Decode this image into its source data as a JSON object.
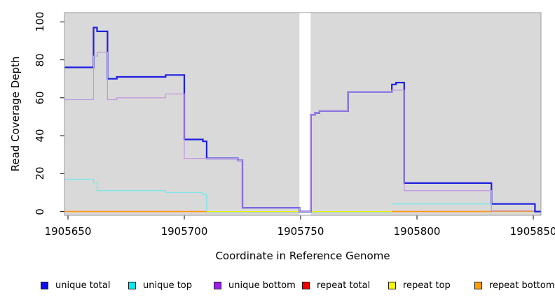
{
  "chart_data": {
    "type": "line",
    "step": true,
    "title": "",
    "xlabel": "Coordinate in Reference Genome",
    "ylabel": "Read Coverage Depth",
    "xlim": [
      1905648.5,
      1905853.3
    ],
    "ylim": [
      -2,
      104.9
    ],
    "x_ticks": [
      1905650,
      1905700,
      1905750,
      1905800,
      1905850
    ],
    "y_ticks": [
      0,
      20,
      40,
      60,
      80,
      100
    ],
    "plot_bg": "#d9d9d9",
    "border_color": "#9b9b9b",
    "tick_color": "#2b2b2b",
    "grid": false,
    "legend_position": "bottom",
    "gap_region": {
      "x_start": 1905749.5,
      "x_end": 1905754.3,
      "color": "#ffffff"
    },
    "series": [
      {
        "name": "unique total",
        "color": "#0d0df0",
        "points": [
          [
            1905648.5,
            76
          ],
          [
            1905661,
            97
          ],
          [
            1905662.5,
            95
          ],
          [
            1905667,
            70
          ],
          [
            1905671,
            71
          ],
          [
            1905692,
            72
          ],
          [
            1905700,
            38
          ],
          [
            1905708,
            37
          ],
          [
            1905709.6,
            28
          ],
          [
            1905723,
            27
          ],
          [
            1905725,
            2
          ],
          [
            1905749.5,
            0
          ],
          [
            1905754.4,
            51
          ],
          [
            1905756.2,
            52
          ],
          [
            1905758.1,
            53
          ],
          [
            1905770.4,
            63
          ],
          [
            1905789.2,
            67
          ],
          [
            1905791,
            68
          ],
          [
            1905794.5,
            15
          ],
          [
            1905832,
            4
          ],
          [
            1905850.7,
            0
          ]
        ],
        "end": 1905853.3
      },
      {
        "name": "unique top",
        "color": "#00e8f0",
        "points": [
          [
            1905648.5,
            17
          ],
          [
            1905661,
            15
          ],
          [
            1905662.5,
            11
          ],
          [
            1905692,
            10
          ],
          [
            1905708,
            9
          ],
          [
            1905709.6,
            0
          ],
          [
            1905789.2,
            4
          ],
          [
            1905832,
            0
          ]
        ],
        "end": 1905853.3
      },
      {
        "name": "unique bottom",
        "color": "#9a20e8",
        "points": [
          [
            1905648.5,
            59
          ],
          [
            1905661,
            82
          ],
          [
            1905662.7,
            84
          ],
          [
            1905667,
            59
          ],
          [
            1905671,
            60
          ],
          [
            1905692,
            62
          ],
          [
            1905700,
            28
          ],
          [
            1905723,
            27
          ],
          [
            1905725,
            2
          ],
          [
            1905749.5,
            0
          ],
          [
            1905754.4,
            51
          ],
          [
            1905756.2,
            52
          ],
          [
            1905758.1,
            53
          ],
          [
            1905770.4,
            63
          ],
          [
            1905789.2,
            64
          ],
          [
            1905794.5,
            11
          ],
          [
            1905832,
            0
          ]
        ],
        "end": 1905853.3
      },
      {
        "name": "repeat total",
        "color": "#f00000",
        "points": [
          [
            1905648.5,
            0
          ]
        ],
        "end": 1905853.3
      },
      {
        "name": "repeat top",
        "color": "#f5f500",
        "points": [
          [
            1905648.5,
            0
          ]
        ],
        "end": 1905853.3
      },
      {
        "name": "repeat bottom",
        "color": "#ffa000",
        "points": [
          [
            1905648.5,
            0
          ]
        ],
        "end": 1905853.3
      }
    ],
    "render_layers": [
      {
        "name": "repeat-top-line",
        "color": "#f2f200",
        "w": 1.2,
        "points": [
          [
            1905648.5,
            0
          ]
        ],
        "end": 1905853.3
      },
      {
        "name": "repeat-total-line",
        "color": "#e0607d",
        "w": 1.3,
        "points": [
          [
            1905832,
            0.2
          ]
        ],
        "end": 1905850.7
      },
      {
        "name": "overlap-green-line",
        "color": "#a5daa5",
        "w": 1.2,
        "points": [
          [
            1905709.6,
            -0.4
          ]
        ],
        "end": 1905789.2
      },
      {
        "name": "unique-total-line",
        "color": "#1f1fe0",
        "w": 2.2,
        "points": [
          [
            1905648.5,
            76
          ],
          [
            1905661,
            97
          ],
          [
            1905662.5,
            95
          ],
          [
            1905667,
            70
          ],
          [
            1905671,
            71
          ],
          [
            1905692,
            72
          ],
          [
            1905700,
            38
          ],
          [
            1905708,
            37
          ],
          [
            1905709.6,
            28
          ],
          [
            1905723,
            27
          ],
          [
            1905725,
            2
          ],
          [
            1905749.5,
            0
          ],
          [
            1905754.4,
            51
          ],
          [
            1905756.2,
            52
          ],
          [
            1905758.1,
            53
          ],
          [
            1905770.4,
            63
          ],
          [
            1905789.2,
            67
          ],
          [
            1905791,
            68
          ],
          [
            1905794.5,
            15
          ],
          [
            1905832,
            4
          ],
          [
            1905850.7,
            0
          ]
        ],
        "end": 1905853.3
      },
      {
        "name": "unique-top-line",
        "color": "#7ce6e8",
        "w": 1.3,
        "points": [
          [
            1905648.5,
            17
          ],
          [
            1905661,
            15
          ],
          [
            1905662.5,
            11
          ],
          [
            1905692,
            10
          ],
          [
            1905708,
            9
          ],
          [
            1905709.6,
            0
          ]
        ],
        "end": 1905710.2
      },
      {
        "name": "unique-top-line-2",
        "color": "#7ce6e8",
        "w": 1.3,
        "points": [
          [
            1905789.2,
            4
          ],
          [
            1905832,
            0
          ]
        ],
        "end": 1905832.6
      },
      {
        "name": "unique-bottom-line",
        "color": "#c49ae2",
        "w": 1.3,
        "points": [
          [
            1905648.5,
            59
          ],
          [
            1905661,
            82
          ],
          [
            1905662.7,
            84
          ],
          [
            1905667,
            59
          ],
          [
            1905671,
            60
          ],
          [
            1905692,
            62
          ],
          [
            1905700,
            28
          ],
          [
            1905723,
            27
          ],
          [
            1905725,
            2
          ],
          [
            1905749.5,
            0
          ],
          [
            1905754.4,
            51
          ],
          [
            1905756.2,
            52
          ],
          [
            1905758.1,
            53
          ],
          [
            1905770.4,
            63
          ],
          [
            1905789.2,
            64
          ],
          [
            1905794.5,
            11
          ],
          [
            1905832,
            0
          ]
        ],
        "end": 1905832.8
      },
      {
        "name": "repeat-bottom-line",
        "color": "#ff9214",
        "w": 1.6,
        "points": [
          [
            1905648.5,
            0
          ]
        ],
        "end": 1905709.6
      },
      {
        "name": "repeat-bottom-line-2",
        "color": "#ff9214",
        "w": 1.6,
        "points": [
          [
            1905789.2,
            0
          ]
        ],
        "end": 1905832
      }
    ]
  },
  "legend": {
    "items": [
      {
        "label": "unique total",
        "color": "#0d0df0"
      },
      {
        "label": "unique top",
        "color": "#00e8f0"
      },
      {
        "label": "unique bottom",
        "color": "#9a20e8"
      },
      {
        "label": "repeat total",
        "color": "#f00000"
      },
      {
        "label": "repeat top",
        "color": "#f5f500"
      },
      {
        "label": "repeat bottom",
        "color": "#ffa000"
      }
    ]
  }
}
